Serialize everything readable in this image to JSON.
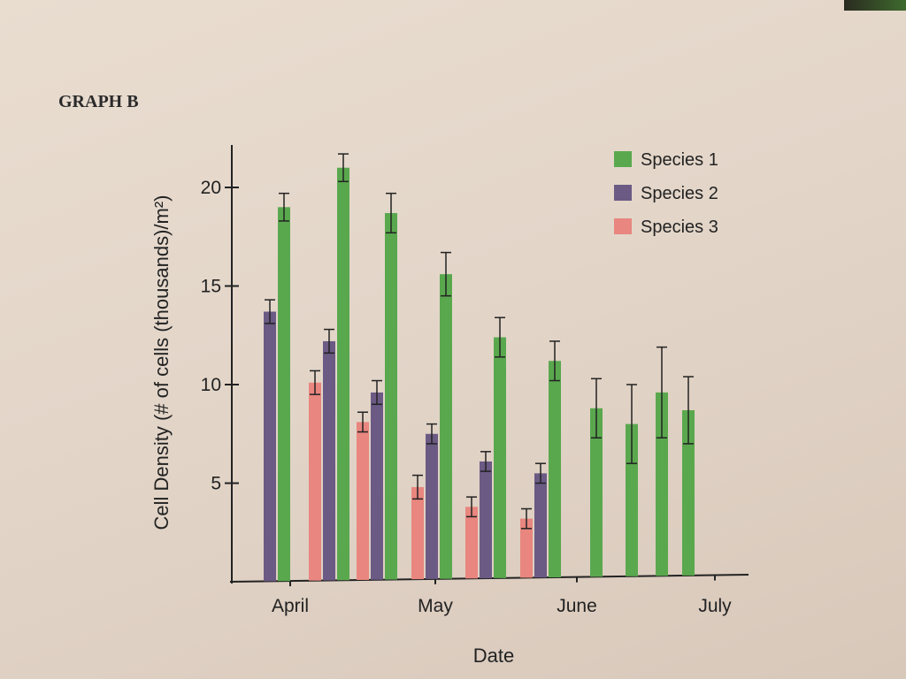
{
  "graph_label": "GRAPH B",
  "chart_data": {
    "type": "bar",
    "title": "GRAPH B",
    "xlabel": "Date",
    "ylabel": "Cell Density (# of cells (thousands)/m²)",
    "ylim": [
      0,
      22
    ],
    "yticks": [
      5,
      10,
      15,
      20
    ],
    "xticks": [
      "April",
      "May",
      "June",
      "July"
    ],
    "legend_position": "top-right",
    "series": [
      {
        "name": "Species 1",
        "color": "#5aa84e"
      },
      {
        "name": "Species 2",
        "color": "#6b5a84"
      },
      {
        "name": "Species 3",
        "color": "#e8867f"
      }
    ],
    "samples": [
      {
        "values": [
          19.0,
          13.7,
          null
        ],
        "errors": [
          0.7,
          0.6,
          null
        ]
      },
      {
        "values": [
          21.0,
          12.2,
          10.1
        ],
        "errors": [
          0.7,
          0.6,
          0.6
        ]
      },
      {
        "values": [
          18.7,
          9.6,
          8.1
        ],
        "errors": [
          1.0,
          0.6,
          0.5
        ]
      },
      {
        "values": [
          15.6,
          7.5,
          4.8
        ],
        "errors": [
          1.1,
          0.5,
          0.6
        ]
      },
      {
        "values": [
          12.4,
          6.1,
          3.8
        ],
        "errors": [
          1.0,
          0.5,
          0.5
        ]
      },
      {
        "values": [
          11.2,
          5.5,
          3.2
        ],
        "errors": [
          1.0,
          0.5,
          0.5
        ]
      },
      {
        "values": [
          8.8,
          null,
          null
        ],
        "errors": [
          1.5,
          null,
          null
        ]
      },
      {
        "values": [
          8.0,
          null,
          null
        ],
        "errors": [
          2.0,
          null,
          null
        ]
      },
      {
        "values": [
          9.6,
          null,
          null
        ],
        "errors": [
          2.3,
          null,
          null
        ]
      },
      {
        "values": [
          8.7,
          null,
          null
        ],
        "errors": [
          1.7,
          null,
          null
        ]
      }
    ]
  }
}
